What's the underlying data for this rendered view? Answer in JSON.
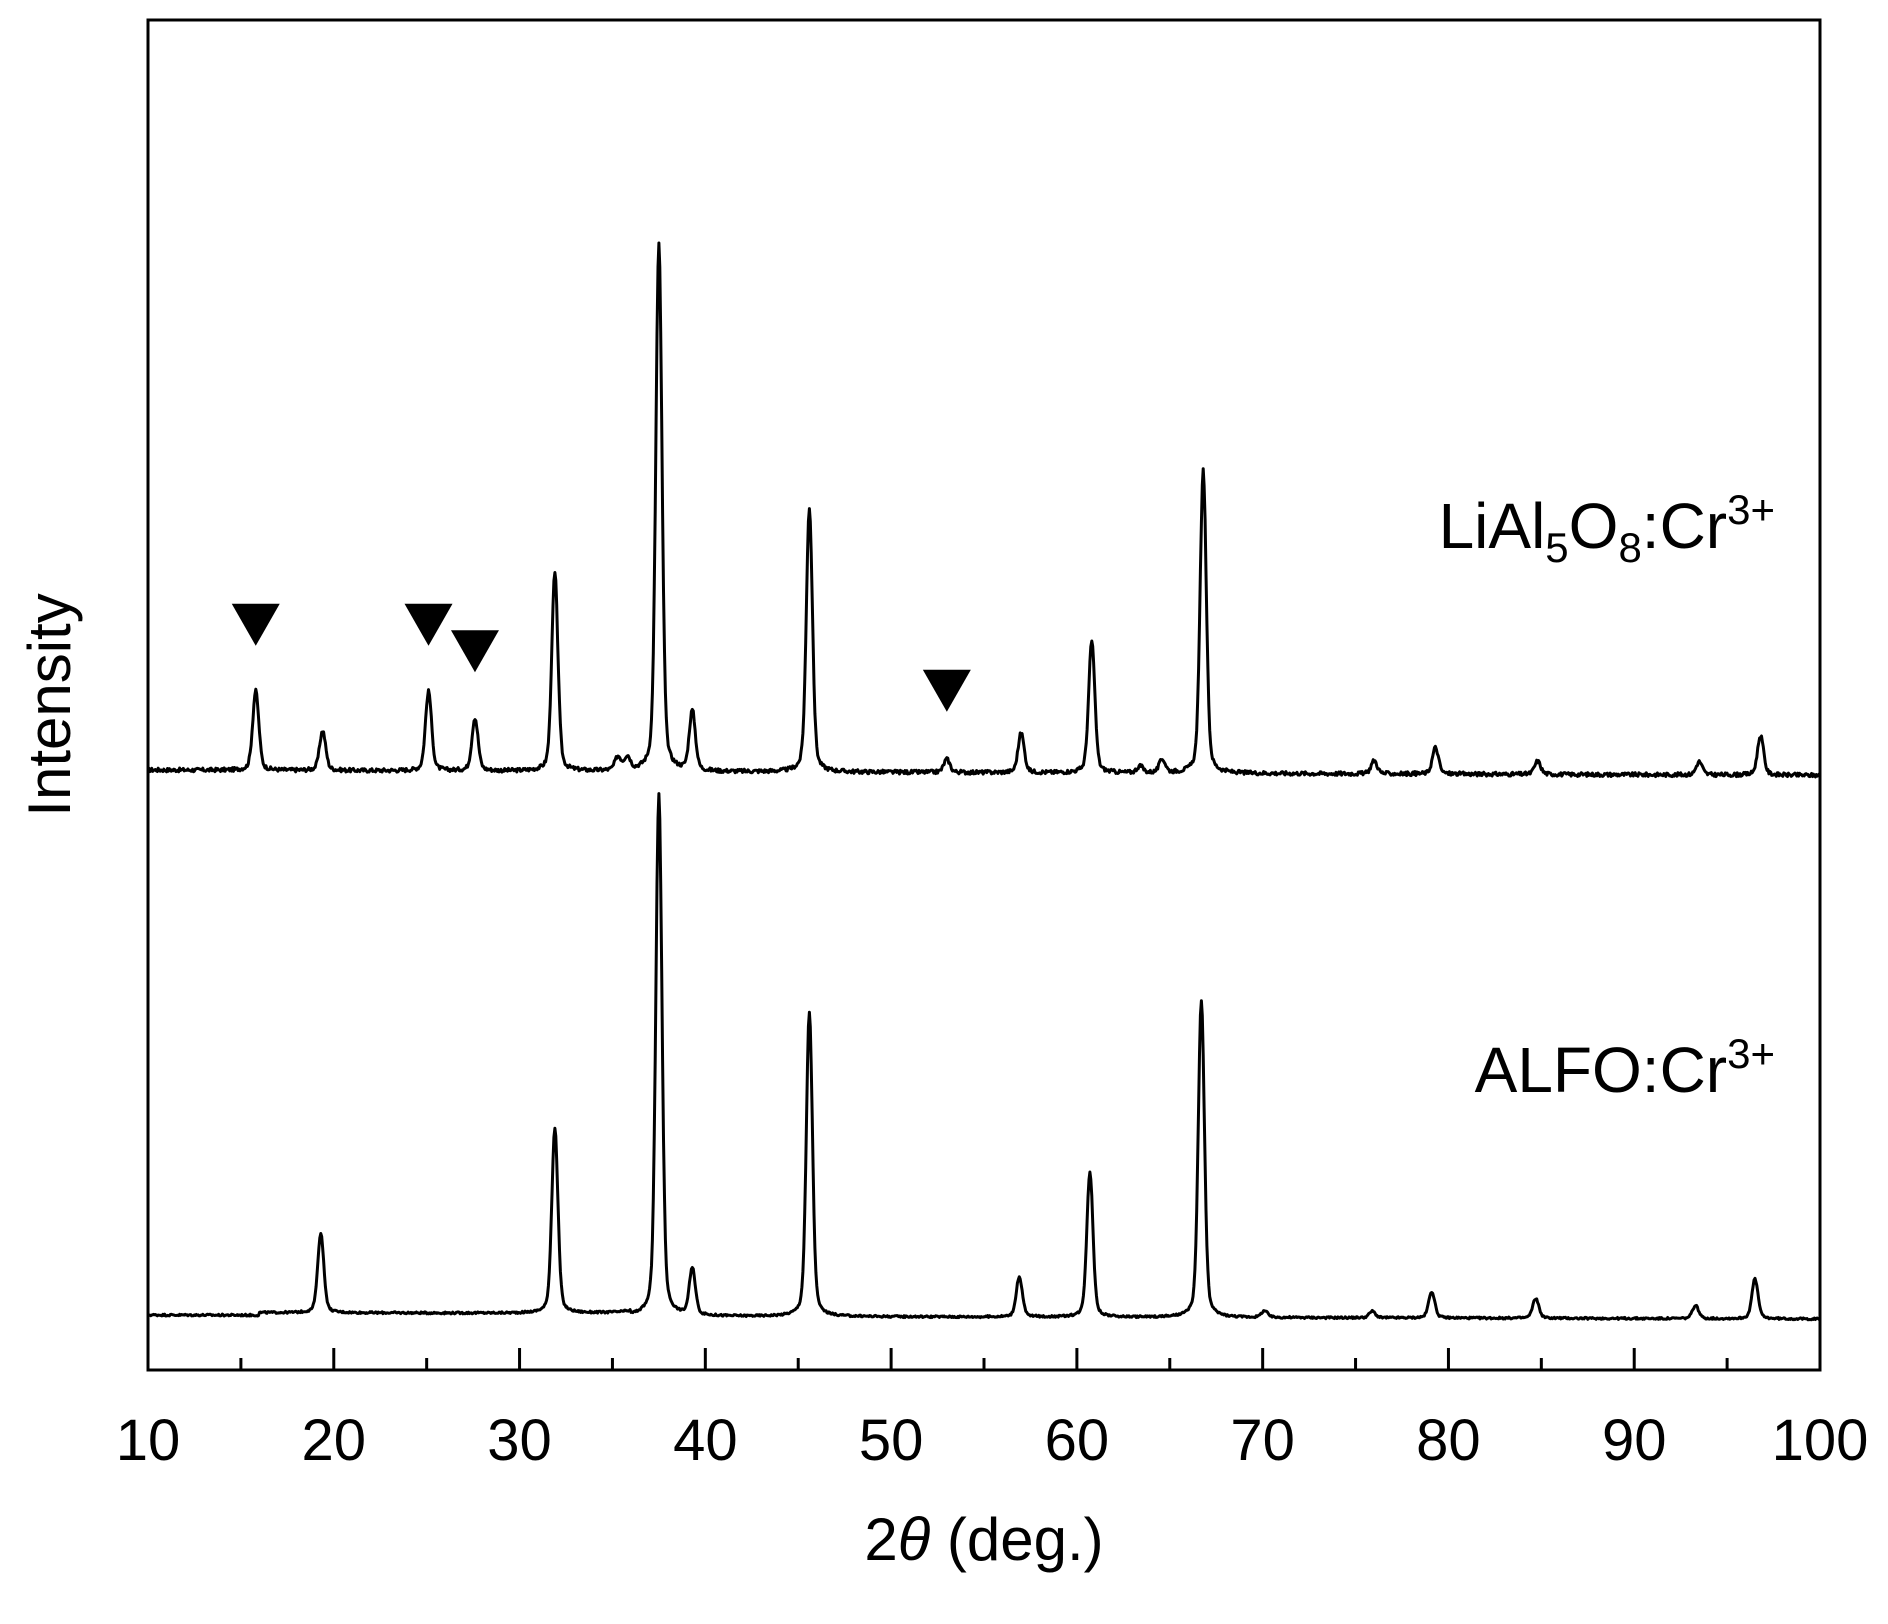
{
  "chart_data": {
    "type": "line",
    "xlabel_prefix": "2",
    "xlabel_symbol": "θ",
    "xlabel_suffix": " (deg.)",
    "ylabel": "Intensity",
    "xlim": [
      10,
      100
    ],
    "x_ticks": [
      10,
      20,
      30,
      40,
      50,
      60,
      70,
      80,
      90,
      100
    ],
    "x_minor_ticks": [
      15,
      25,
      35,
      45,
      55,
      65,
      75,
      85,
      95
    ],
    "grid": false,
    "legend": "none",
    "y_ticks_shown": false,
    "series": [
      {
        "label_main": "LiAl",
        "label_sub1": "5",
        "label_mid": "O",
        "label_sub2": "8",
        "label_tail": ":Cr",
        "label_sup": "3+",
        "baseline": 0,
        "peaks": [
          {
            "x": 15.8,
            "h": 0.12
          },
          {
            "x": 19.4,
            "h": 0.06
          },
          {
            "x": 25.1,
            "h": 0.12
          },
          {
            "x": 27.6,
            "h": 0.08
          },
          {
            "x": 31.9,
            "h": 0.3
          },
          {
            "x": 35.3,
            "h": 0.02
          },
          {
            "x": 35.8,
            "h": 0.02
          },
          {
            "x": 37.5,
            "h": 0.8
          },
          {
            "x": 39.3,
            "h": 0.09
          },
          {
            "x": 45.6,
            "h": 0.4
          },
          {
            "x": 53.0,
            "h": 0.02
          },
          {
            "x": 57.0,
            "h": 0.06
          },
          {
            "x": 60.8,
            "h": 0.2
          },
          {
            "x": 63.4,
            "h": 0.01
          },
          {
            "x": 64.6,
            "h": 0.02
          },
          {
            "x": 66.8,
            "h": 0.46
          },
          {
            "x": 76.0,
            "h": 0.02
          },
          {
            "x": 79.3,
            "h": 0.04
          },
          {
            "x": 84.8,
            "h": 0.02
          },
          {
            "x": 93.5,
            "h": 0.02
          },
          {
            "x": 96.8,
            "h": 0.06
          }
        ],
        "markers_x": [
          15.8,
          25.1,
          27.6,
          53.0
        ]
      },
      {
        "label_main": "ALFO:Cr",
        "label_sup": "3+",
        "baseline": -1,
        "peaks": [
          {
            "x": 19.3,
            "h": 0.12
          },
          {
            "x": 31.9,
            "h": 0.28
          },
          {
            "x": 37.5,
            "h": 0.79
          },
          {
            "x": 39.3,
            "h": 0.07
          },
          {
            "x": 45.6,
            "h": 0.46
          },
          {
            "x": 56.9,
            "h": 0.06
          },
          {
            "x": 60.7,
            "h": 0.22
          },
          {
            "x": 66.7,
            "h": 0.48
          },
          {
            "x": 70.1,
            "h": 0.01
          },
          {
            "x": 75.9,
            "h": 0.01
          },
          {
            "x": 79.1,
            "h": 0.04
          },
          {
            "x": 84.7,
            "h": 0.03
          },
          {
            "x": 93.3,
            "h": 0.02
          },
          {
            "x": 96.5,
            "h": 0.06
          }
        ]
      }
    ]
  }
}
